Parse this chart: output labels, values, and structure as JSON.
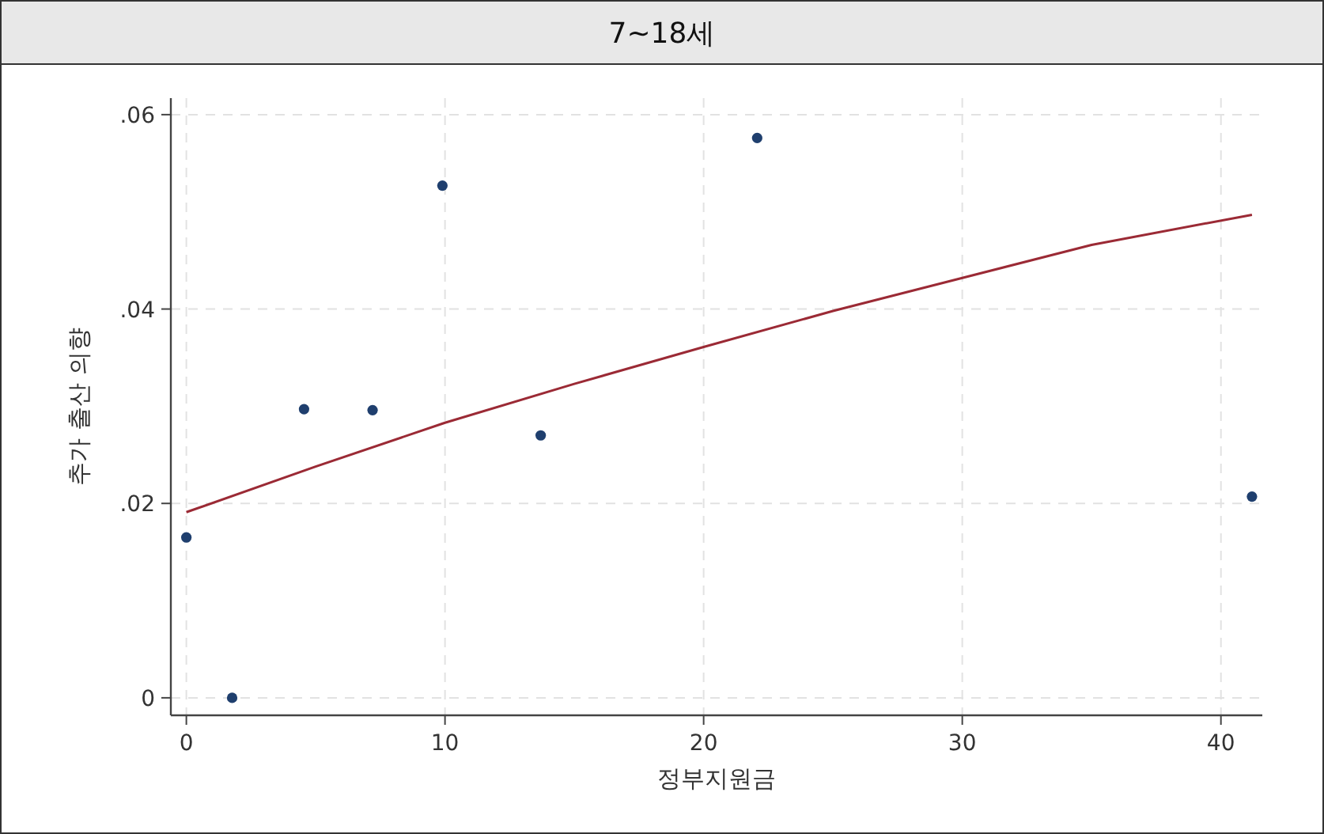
{
  "chart_data": {
    "type": "scatter",
    "title": "7~18세",
    "xlabel": "정부지원금",
    "ylabel": "추가 출산 의향",
    "xlim": [
      -0.6,
      41.6
    ],
    "ylim": [
      -0.0018,
      0.0617
    ],
    "xticks": [
      0,
      10,
      20,
      30,
      40
    ],
    "yticks": [
      0,
      {
        "value": 0.02,
        "label": ".02"
      },
      {
        "value": 0.04,
        "label": ".04"
      },
      {
        "value": 0.06,
        "label": ".06"
      }
    ],
    "grid": true,
    "series": [
      {
        "marker": "circle",
        "color": "#1f3f6e",
        "x": [
          0,
          1.77,
          4.55,
          7.2,
          9.9,
          13.7,
          22.07,
          41.2
        ],
        "values": [
          0.0165,
          0,
          0.0297,
          0.0296,
          0.0527,
          0.027,
          0.0576,
          0.0207
        ]
      },
      {
        "type": "line",
        "color": "#9b2a35",
        "x": [
          0,
          5,
          10,
          15,
          20,
          25,
          30,
          35,
          41.2
        ],
        "values": [
          0.0191,
          0.0238,
          0.0283,
          0.0323,
          0.0361,
          0.0398,
          0.0432,
          0.0466,
          0.0497
        ]
      }
    ]
  }
}
